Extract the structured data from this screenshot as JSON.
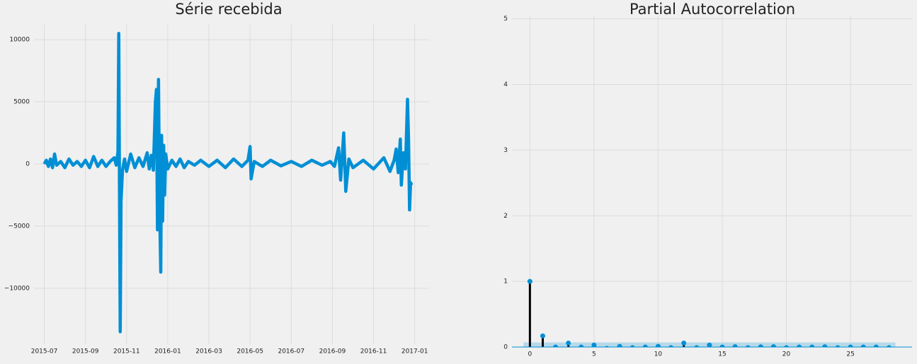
{
  "chart_data": [
    {
      "type": "line",
      "title": "Série recebida",
      "color": "#008fd5",
      "grid": true,
      "x": [
        0,
        0.1,
        0.2,
        0.3,
        0.4,
        0.5,
        0.6,
        0.8,
        1.0,
        1.2,
        1.4,
        1.6,
        1.8,
        2.0,
        2.2,
        2.4,
        2.6,
        2.8,
        3.0,
        3.2,
        3.4,
        3.5,
        3.58,
        3.62,
        3.66,
        3.69,
        3.73,
        3.8,
        3.9,
        4.0,
        4.2,
        4.4,
        4.6,
        4.8,
        5.0,
        5.1,
        5.2,
        5.3,
        5.4,
        5.45,
        5.5,
        5.55,
        5.6,
        5.66,
        5.7,
        5.75,
        5.8,
        5.85,
        5.9,
        6.0,
        6.2,
        6.4,
        6.6,
        6.8,
        7.0,
        7.3,
        7.6,
        8.0,
        8.4,
        8.8,
        9.2,
        9.6,
        9.9,
        10.0,
        10.05,
        10.2,
        10.6,
        11.0,
        11.5,
        12.0,
        12.5,
        13.0,
        13.5,
        13.9,
        14.1,
        14.3,
        14.4,
        14.55,
        14.65,
        14.8,
        15.0,
        15.5,
        16.0,
        16.5,
        16.8,
        17.0,
        17.1,
        17.2,
        17.3,
        17.35,
        17.45,
        17.55,
        17.65,
        17.7,
        17.75,
        17.8,
        17.85
      ],
      "values": [
        0,
        300,
        -200,
        400,
        -300,
        800,
        -100,
        200,
        -300,
        400,
        -100,
        200,
        -200,
        300,
        -300,
        600,
        -200,
        300,
        -200,
        200,
        500,
        -100,
        1000,
        10500,
        -4000,
        -13500,
        -3000,
        -500,
        400,
        -600,
        800,
        -300,
        500,
        -200,
        900,
        -400,
        700,
        -500,
        5000,
        6000,
        -5300,
        6800,
        -3000,
        -8700,
        2300,
        -4600,
        1500,
        -2500,
        800,
        -400,
        300,
        -200,
        400,
        -300,
        200,
        -100,
        300,
        -200,
        300,
        -300,
        400,
        -200,
        300,
        1400,
        -1200,
        200,
        -200,
        300,
        -150,
        200,
        -200,
        300,
        -100,
        200,
        -200,
        1300,
        -1300,
        2500,
        -2200,
        400,
        -300,
        300,
        -400,
        500,
        -600,
        300,
        1200,
        -700,
        2000,
        -1700,
        900,
        -400,
        5200,
        2000,
        -3700,
        -1500,
        -1700
      ],
      "xlim": [
        -0.5,
        18.7
      ],
      "xticks": [
        {
          "value": 0,
          "label": "2015-07"
        },
        {
          "value": 2,
          "label": "2015-09"
        },
        {
          "value": 4,
          "label": "2015-11"
        },
        {
          "value": 6,
          "label": "2016-01"
        },
        {
          "value": 8,
          "label": "2016-03"
        },
        {
          "value": 10,
          "label": "2016-05"
        },
        {
          "value": 12,
          "label": "2016-07"
        },
        {
          "value": 14,
          "label": "2016-09"
        },
        {
          "value": 16,
          "label": "2016-11"
        },
        {
          "value": 18,
          "label": "2017-01"
        }
      ],
      "ylim": [
        -14500,
        11200
      ],
      "yticks": [
        {
          "value": -10000,
          "label": "−10000"
        },
        {
          "value": -5000,
          "label": "−5000"
        },
        0,
        5000,
        10000
      ]
    },
    {
      "type": "stem",
      "title": "Partial Autocorrelation",
      "color": "#008fd5",
      "stem_color": "#000000",
      "band_color": "#a6d3e8",
      "grid": true,
      "x": [
        0,
        1,
        2,
        3,
        4,
        5,
        6,
        7,
        8,
        9,
        10,
        11,
        12,
        13,
        14,
        15,
        16,
        17,
        18,
        19,
        20,
        21,
        22,
        23,
        24,
        25,
        26,
        27,
        28
      ],
      "values": [
        1.0,
        0.17,
        0.0,
        0.06,
        0.0,
        0.03,
        -0.02,
        0.01,
        -0.01,
        0.0,
        0.01,
        -0.01,
        0.06,
        -0.01,
        0.03,
        0.0,
        0.005,
        -0.01,
        0.003,
        0.005,
        -0.01,
        0.0,
        0.0,
        0.004,
        -0.01,
        0.0,
        0.0,
        0.0,
        -0.01
      ],
      "confidence": 0.07,
      "xlim": [
        -1.4,
        29.8
      ],
      "xticks": [
        0,
        5,
        10,
        15,
        20,
        25
      ],
      "ylim": [
        0,
        5.05
      ],
      "yticks": [
        0,
        1,
        2,
        3,
        4,
        5
      ]
    }
  ]
}
